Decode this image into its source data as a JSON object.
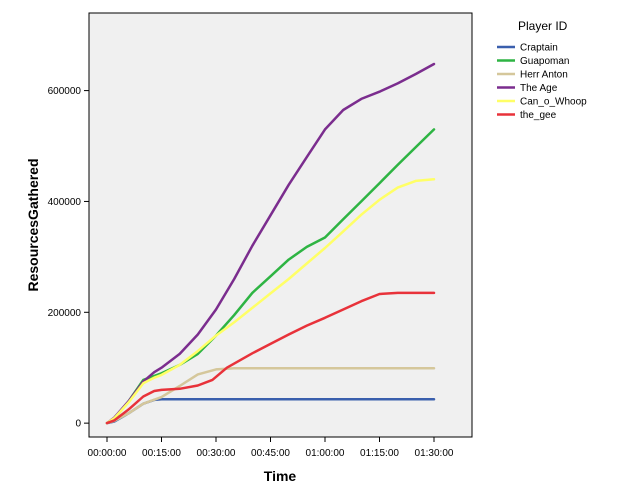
{
  "chart_data": {
    "type": "line",
    "xlabel": "Time",
    "ylabel": "ResourcesGathered",
    "legend_title": "Player ID",
    "legend_position": "right",
    "grid": false,
    "background": "#f0f0f0",
    "xlim": [
      "00:00:00",
      "01:35:00"
    ],
    "x_ticks": [
      "00:00:00",
      "00:15:00",
      "00:30:00",
      "00:45:00",
      "01:00:00",
      "01:15:00",
      "01:30:00"
    ],
    "ylim": [
      -25000,
      740000
    ],
    "y_ticks": [
      0,
      200000,
      400000,
      600000
    ],
    "y_tick_labels": [
      "0",
      "200000",
      "400000",
      "600000"
    ],
    "series": [
      {
        "name": "Craptain",
        "color": "#3a5fad",
        "x": [
          "00:00:00",
          "00:02:00",
          "00:06:00",
          "00:10:00",
          "00:13:00",
          "00:15:00",
          "01:30:00"
        ],
        "y": [
          0,
          3000,
          18000,
          35000,
          42000,
          43000,
          43000
        ]
      },
      {
        "name": "Guapoman",
        "color": "#2eb443",
        "x": [
          "00:00:00",
          "00:02:00",
          "00:06:00",
          "00:10:00",
          "00:15:00",
          "00:20:00",
          "00:25:00",
          "00:30:00",
          "00:35:00",
          "00:40:00",
          "00:45:00",
          "00:50:00",
          "00:55:00",
          "01:00:00",
          "01:05:00",
          "01:10:00",
          "01:15:00",
          "01:20:00",
          "01:25:00",
          "01:30:00"
        ],
        "y": [
          0,
          8000,
          40000,
          78000,
          90000,
          105000,
          125000,
          158000,
          195000,
          235000,
          265000,
          295000,
          318000,
          335000,
          368000,
          400000,
          433000,
          466000,
          498000,
          530000
        ]
      },
      {
        "name": "Herr Anton",
        "color": "#d5c79b",
        "x": [
          "00:00:00",
          "00:02:00",
          "00:06:00",
          "00:10:00",
          "00:15:00",
          "00:20:00",
          "00:25:00",
          "00:30:00",
          "00:35:00",
          "01:30:00"
        ],
        "y": [
          0,
          4000,
          18000,
          35000,
          47000,
          67000,
          88000,
          97000,
          99000,
          99000
        ]
      },
      {
        "name": "The Age",
        "color": "#7b2d8e",
        "x": [
          "00:00:00",
          "00:02:00",
          "00:06:00",
          "00:10:00",
          "00:13:00",
          "00:15:00",
          "00:20:00",
          "00:25:00",
          "00:30:00",
          "00:35:00",
          "00:40:00",
          "00:45:00",
          "00:50:00",
          "00:55:00",
          "01:00:00",
          "01:05:00",
          "01:10:00",
          "01:15:00",
          "01:20:00",
          "01:25:00",
          "01:30:00"
        ],
        "y": [
          0,
          10000,
          40000,
          75000,
          92000,
          100000,
          125000,
          160000,
          205000,
          260000,
          320000,
          375000,
          430000,
          480000,
          530000,
          565000,
          585000,
          598000,
          613000,
          630000,
          648000
        ]
      },
      {
        "name": "Can_o_Whoop",
        "color": "#ffff66",
        "x": [
          "00:00:00",
          "00:02:00",
          "00:06:00",
          "00:10:00",
          "00:13:00",
          "00:15:00",
          "00:20:00",
          "00:25:00",
          "00:30:00",
          "00:35:00",
          "00:40:00",
          "00:45:00",
          "00:50:00",
          "00:55:00",
          "01:00:00",
          "01:05:00",
          "01:10:00",
          "01:15:00",
          "01:20:00",
          "01:25:00",
          "01:30:00"
        ],
        "y": [
          0,
          9000,
          38000,
          72000,
          82000,
          87000,
          105000,
          130000,
          158000,
          182000,
          208000,
          234000,
          260000,
          288000,
          316000,
          346000,
          376000,
          403000,
          425000,
          437000,
          440000
        ]
      },
      {
        "name": "the_gee",
        "color": "#e8323a",
        "x": [
          "00:00:00",
          "00:02:00",
          "00:06:00",
          "00:10:00",
          "00:13:00",
          "00:15:00",
          "00:20:00",
          "00:25:00",
          "00:29:00",
          "00:33:00",
          "00:40:00",
          "00:45:00",
          "00:50:00",
          "00:55:00",
          "01:00:00",
          "01:05:00",
          "01:10:00",
          "01:15:00",
          "01:20:00",
          "01:30:00"
        ],
        "y": [
          0,
          5000,
          25000,
          48000,
          58000,
          60000,
          62000,
          68000,
          78000,
          100000,
          126000,
          143000,
          160000,
          176000,
          190000,
          205000,
          220000,
          233000,
          235000,
          235000
        ]
      }
    ]
  }
}
